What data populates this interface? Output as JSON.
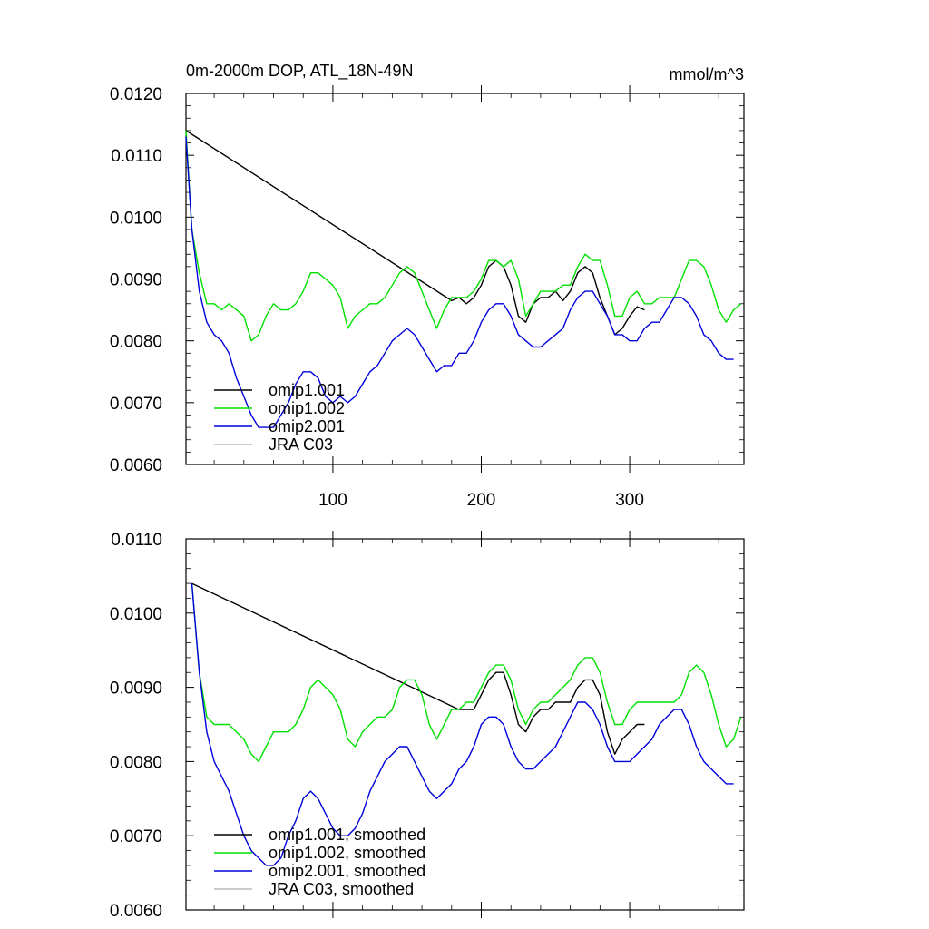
{
  "colors": {
    "omip1_001": "#000000",
    "omip1_002": "#00e000",
    "omip2_001": "#0000dd",
    "jra_c03": "#bbbbbb"
  },
  "chart_data": [
    {
      "type": "line",
      "title": "0m-2000m DOP, ATL_18N-49N",
      "units": "mmol/m^3",
      "xlabel": "",
      "ylabel": "",
      "xlim": [
        1,
        377
      ],
      "ylim": [
        0.006,
        0.012
      ],
      "yticks": [
        0.006,
        0.007,
        0.008,
        0.009,
        0.01,
        0.011,
        0.012
      ],
      "ytick_labels": [
        "0.0060",
        "0.0070",
        "0.0080",
        "0.0090",
        "0.0100",
        "0.0110",
        "0.0120"
      ],
      "xticks": [
        100,
        200,
        300
      ],
      "xtick_labels": [
        "100",
        "200",
        "300"
      ],
      "legend_position": "bottom-left",
      "series": [
        {
          "name": "omip1.001",
          "color_key": "omip1_001",
          "x": [
            1,
            180,
            185,
            190,
            195,
            200,
            205,
            210,
            215,
            220,
            225,
            230,
            235,
            240,
            245,
            250,
            255,
            260,
            265,
            270,
            275,
            280,
            285,
            290,
            295,
            300,
            305,
            310
          ],
          "y": [
            0.0114,
            0.00865,
            0.0087,
            0.0086,
            0.0087,
            0.0089,
            0.0092,
            0.0093,
            0.0092,
            0.0089,
            0.0084,
            0.0083,
            0.0086,
            0.0087,
            0.0087,
            0.0088,
            0.00865,
            0.0088,
            0.0091,
            0.0092,
            0.0091,
            0.0087,
            0.0084,
            0.0081,
            0.0082,
            0.0084,
            0.00855,
            0.0085
          ]
        },
        {
          "name": "omip1.002",
          "color_key": "omip1_002",
          "x": [
            1,
            5,
            10,
            15,
            20,
            25,
            30,
            35,
            40,
            45,
            50,
            55,
            60,
            65,
            70,
            75,
            80,
            85,
            90,
            95,
            100,
            105,
            110,
            115,
            120,
            125,
            130,
            135,
            140,
            145,
            150,
            155,
            160,
            165,
            170,
            175,
            180,
            185,
            190,
            195,
            200,
            205,
            210,
            215,
            220,
            225,
            230,
            235,
            240,
            245,
            250,
            255,
            260,
            265,
            270,
            275,
            280,
            285,
            290,
            295,
            300,
            305,
            310,
            315,
            320,
            325,
            330,
            335,
            340,
            345,
            350,
            355,
            360,
            365,
            370,
            375
          ],
          "y": [
            0.0114,
            0.0098,
            0.0091,
            0.0086,
            0.0086,
            0.0085,
            0.0086,
            0.0085,
            0.0084,
            0.008,
            0.0081,
            0.0084,
            0.0086,
            0.0085,
            0.0085,
            0.0086,
            0.0088,
            0.0091,
            0.0091,
            0.009,
            0.0089,
            0.0087,
            0.0082,
            0.0084,
            0.0085,
            0.0086,
            0.0086,
            0.0087,
            0.0089,
            0.0091,
            0.0092,
            0.0091,
            0.0088,
            0.0085,
            0.0082,
            0.0085,
            0.0087,
            0.0087,
            0.0087,
            0.0088,
            0.009,
            0.0093,
            0.0093,
            0.0092,
            0.0093,
            0.009,
            0.0084,
            0.0086,
            0.0088,
            0.0088,
            0.0088,
            0.0089,
            0.0089,
            0.0092,
            0.0094,
            0.0093,
            0.0093,
            0.0089,
            0.0084,
            0.0084,
            0.0087,
            0.0088,
            0.0086,
            0.0086,
            0.0087,
            0.0087,
            0.0087,
            0.009,
            0.0093,
            0.0093,
            0.0092,
            0.0089,
            0.0085,
            0.0083,
            0.0085,
            0.0086
          ]
        },
        {
          "name": "omip2.001",
          "color_key": "omip2_001",
          "x": [
            1,
            5,
            10,
            15,
            20,
            25,
            30,
            35,
            40,
            45,
            50,
            55,
            60,
            65,
            70,
            75,
            80,
            85,
            90,
            95,
            100,
            105,
            110,
            115,
            120,
            125,
            130,
            135,
            140,
            145,
            150,
            155,
            160,
            165,
            170,
            175,
            180,
            185,
            190,
            195,
            200,
            205,
            210,
            215,
            220,
            225,
            230,
            235,
            240,
            245,
            250,
            255,
            260,
            265,
            270,
            275,
            280,
            285,
            290,
            295,
            300,
            305,
            310,
            315,
            320,
            325,
            330,
            335,
            340,
            345,
            350,
            355,
            360,
            365,
            370
          ],
          "y": [
            0.0113,
            0.0098,
            0.0088,
            0.0083,
            0.0081,
            0.008,
            0.0078,
            0.0074,
            0.0071,
            0.0068,
            0.0066,
            0.0066,
            0.0066,
            0.0068,
            0.007,
            0.0073,
            0.0075,
            0.0075,
            0.0074,
            0.0071,
            0.007,
            0.0071,
            0.007,
            0.0071,
            0.0073,
            0.0075,
            0.0076,
            0.0078,
            0.008,
            0.0081,
            0.0082,
            0.0081,
            0.0079,
            0.0077,
            0.0075,
            0.0076,
            0.0076,
            0.0078,
            0.0078,
            0.008,
            0.0083,
            0.0085,
            0.0086,
            0.0086,
            0.0084,
            0.0081,
            0.008,
            0.0079,
            0.0079,
            0.008,
            0.0081,
            0.0082,
            0.0085,
            0.0087,
            0.0088,
            0.0088,
            0.0086,
            0.0084,
            0.0081,
            0.0081,
            0.008,
            0.008,
            0.0082,
            0.0083,
            0.0083,
            0.0085,
            0.0087,
            0.0087,
            0.0086,
            0.0084,
            0.0081,
            0.008,
            0.0078,
            0.0077,
            0.0077
          ]
        },
        {
          "name": "JRA C03",
          "color_key": "jra_c03",
          "x": [],
          "y": []
        }
      ]
    },
    {
      "type": "line",
      "title": "",
      "units": "",
      "xlabel": "",
      "ylabel": "",
      "xlim": [
        1,
        377
      ],
      "ylim": [
        0.006,
        0.011
      ],
      "yticks": [
        0.006,
        0.007,
        0.008,
        0.009,
        0.01,
        0.011
      ],
      "ytick_labels": [
        "0.0060",
        "0.0070",
        "0.0080",
        "0.0090",
        "0.0100",
        "0.0110"
      ],
      "xticks": [
        100,
        200,
        300
      ],
      "xtick_labels": [],
      "legend_position": "bottom-left",
      "series": [
        {
          "name": "omip1.001, smoothed",
          "color_key": "omip1_001",
          "x": [
            5,
            185,
            190,
            195,
            200,
            205,
            210,
            215,
            220,
            225,
            230,
            235,
            240,
            245,
            250,
            255,
            260,
            265,
            270,
            275,
            280,
            285,
            290,
            295,
            300,
            305,
            310
          ],
          "y": [
            0.0104,
            0.0087,
            0.0087,
            0.0087,
            0.0089,
            0.0091,
            0.0092,
            0.0092,
            0.0089,
            0.0085,
            0.0084,
            0.0086,
            0.0087,
            0.0087,
            0.0088,
            0.0088,
            0.0088,
            0.009,
            0.0091,
            0.0091,
            0.0089,
            0.0084,
            0.0081,
            0.0083,
            0.0084,
            0.0085,
            0.0085
          ]
        },
        {
          "name": "omip1.002, smoothed",
          "color_key": "omip1_002",
          "x": [
            5,
            10,
            15,
            20,
            25,
            30,
            35,
            40,
            45,
            50,
            55,
            60,
            65,
            70,
            75,
            80,
            85,
            90,
            95,
            100,
            105,
            110,
            115,
            120,
            125,
            130,
            135,
            140,
            145,
            150,
            155,
            160,
            165,
            170,
            175,
            180,
            185,
            190,
            195,
            200,
            205,
            210,
            215,
            220,
            225,
            230,
            235,
            240,
            245,
            250,
            255,
            260,
            265,
            270,
            275,
            280,
            285,
            290,
            295,
            300,
            305,
            310,
            315,
            320,
            325,
            330,
            335,
            340,
            345,
            350,
            355,
            360,
            365,
            370,
            375
          ],
          "y": [
            0.0104,
            0.0092,
            0.0086,
            0.0085,
            0.0085,
            0.0085,
            0.0084,
            0.0083,
            0.0081,
            0.008,
            0.0082,
            0.0084,
            0.0084,
            0.0084,
            0.0085,
            0.0087,
            0.009,
            0.0091,
            0.009,
            0.0089,
            0.0087,
            0.0083,
            0.0082,
            0.0084,
            0.0085,
            0.0086,
            0.0086,
            0.0087,
            0.009,
            0.0091,
            0.0091,
            0.0089,
            0.0085,
            0.0083,
            0.0085,
            0.0087,
            0.0087,
            0.0088,
            0.0088,
            0.009,
            0.0092,
            0.0093,
            0.0093,
            0.0091,
            0.0087,
            0.0085,
            0.0087,
            0.0088,
            0.0088,
            0.0089,
            0.009,
            0.0091,
            0.0093,
            0.0094,
            0.0094,
            0.0092,
            0.0088,
            0.0085,
            0.0085,
            0.0087,
            0.0088,
            0.0088,
            0.0088,
            0.0088,
            0.0088,
            0.0088,
            0.0089,
            0.0092,
            0.0093,
            0.0092,
            0.0089,
            0.0085,
            0.0082,
            0.0083,
            0.0086
          ]
        },
        {
          "name": "omip2.001, smoothed",
          "color_key": "omip2_001",
          "x": [
            5,
            10,
            15,
            20,
            25,
            30,
            35,
            40,
            45,
            50,
            55,
            60,
            65,
            70,
            75,
            80,
            85,
            90,
            95,
            100,
            105,
            110,
            115,
            120,
            125,
            130,
            135,
            140,
            145,
            150,
            155,
            160,
            165,
            170,
            175,
            180,
            185,
            190,
            195,
            200,
            205,
            210,
            215,
            220,
            225,
            230,
            235,
            240,
            245,
            250,
            255,
            260,
            265,
            270,
            275,
            280,
            285,
            290,
            295,
            300,
            305,
            310,
            315,
            320,
            325,
            330,
            335,
            340,
            345,
            350,
            355,
            360,
            365,
            370
          ],
          "y": [
            0.0104,
            0.0092,
            0.0084,
            0.008,
            0.0078,
            0.0076,
            0.0073,
            0.007,
            0.0068,
            0.0067,
            0.0066,
            0.0066,
            0.0067,
            0.007,
            0.0072,
            0.0075,
            0.0076,
            0.0075,
            0.0073,
            0.0071,
            0.007,
            0.007,
            0.0071,
            0.0073,
            0.0076,
            0.0078,
            0.008,
            0.0081,
            0.0082,
            0.0082,
            0.008,
            0.0078,
            0.0076,
            0.0075,
            0.0076,
            0.0077,
            0.0079,
            0.008,
            0.0082,
            0.0085,
            0.0086,
            0.0086,
            0.0085,
            0.0082,
            0.008,
            0.0079,
            0.0079,
            0.008,
            0.0081,
            0.0082,
            0.0084,
            0.0086,
            0.0088,
            0.0088,
            0.0087,
            0.0085,
            0.0082,
            0.008,
            0.008,
            0.008,
            0.0081,
            0.0082,
            0.0083,
            0.0085,
            0.0086,
            0.0087,
            0.0087,
            0.0085,
            0.0082,
            0.008,
            0.0079,
            0.0078,
            0.0077,
            0.0077
          ]
        },
        {
          "name": "JRA C03, smoothed",
          "color_key": "jra_c03",
          "x": [],
          "y": []
        }
      ]
    }
  ]
}
